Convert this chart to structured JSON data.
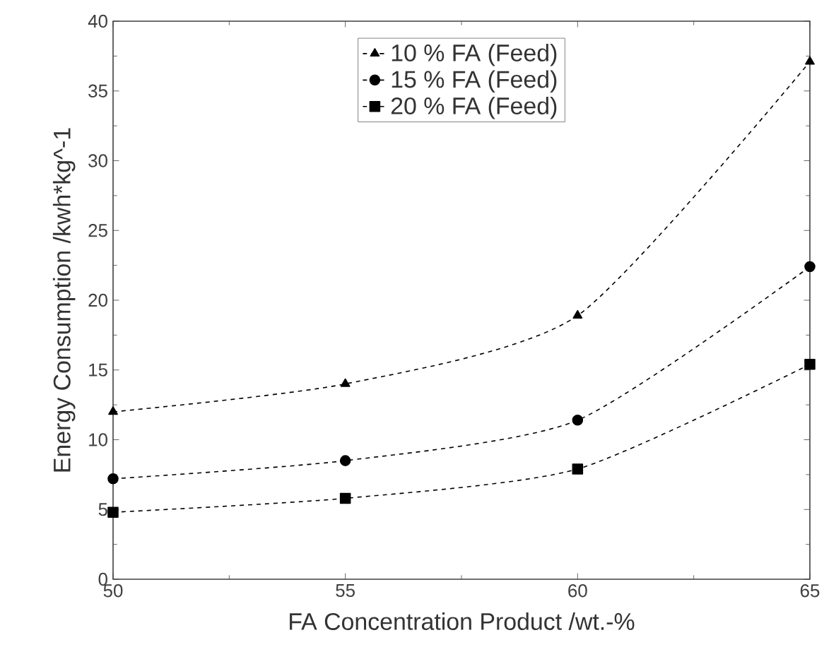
{
  "chart_data": {
    "type": "line",
    "xlabel": "FA Concentration Product /wt.-%",
    "ylabel": "Energy Consumption /kwh*kg^-1",
    "x": [
      50,
      55,
      60,
      65
    ],
    "xlim": [
      50,
      65
    ],
    "xticks": [
      50,
      55,
      60,
      65
    ],
    "ylim": [
      0,
      40
    ],
    "yticks": [
      0,
      5,
      10,
      15,
      20,
      25,
      30,
      35,
      40
    ],
    "legend": "top",
    "line_style": "dashed",
    "grid": false,
    "series": [
      {
        "name": "10 % FA (Feed)",
        "color": "#000000",
        "marker": "triangle",
        "values": [
          12.0,
          14.0,
          18.9,
          37.1
        ]
      },
      {
        "name": "15 % FA (Feed)",
        "color": "#000000",
        "marker": "circle",
        "values": [
          7.2,
          8.5,
          11.4,
          22.4
        ]
      },
      {
        "name": "20 % FA (Feed)",
        "color": "#000000",
        "marker": "square",
        "values": [
          4.8,
          5.8,
          7.9,
          15.4
        ]
      }
    ]
  }
}
